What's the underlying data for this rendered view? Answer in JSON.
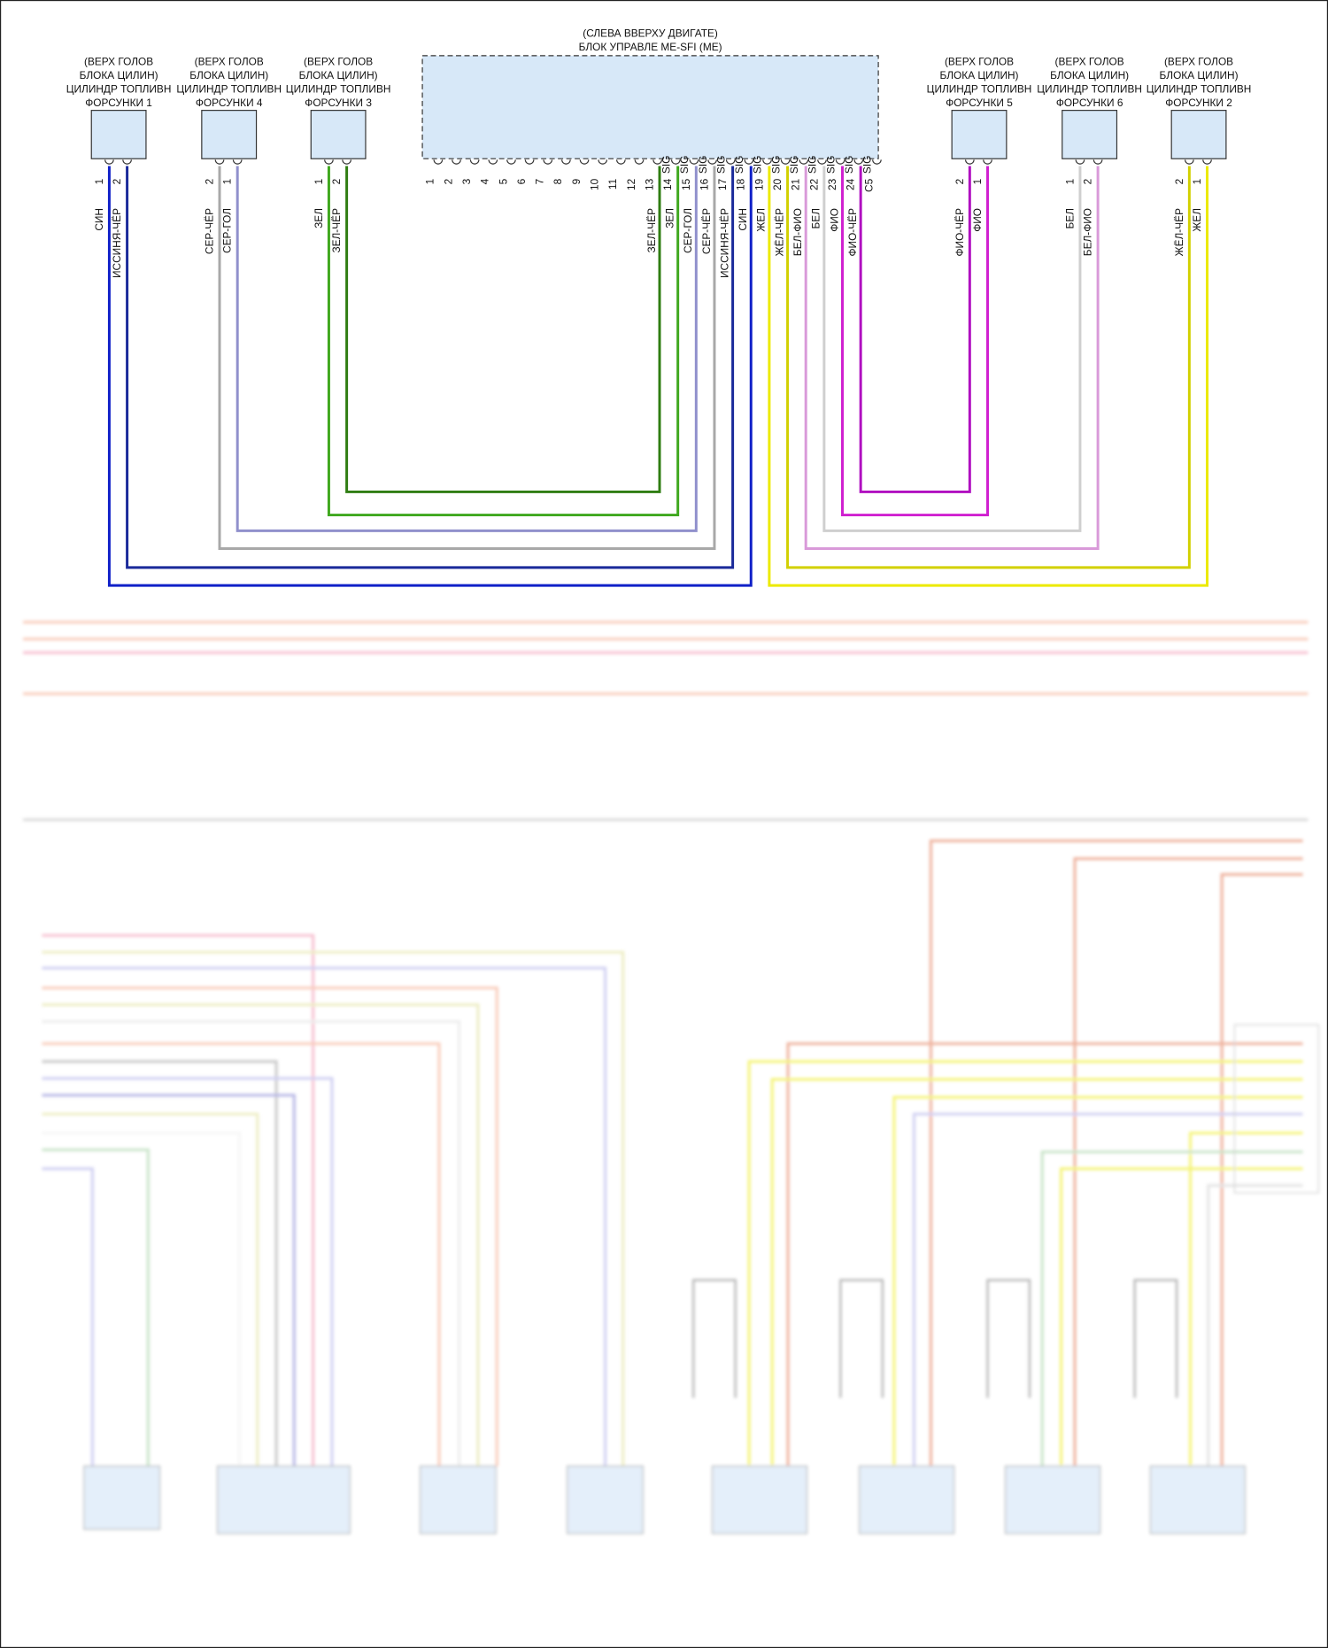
{
  "ecu": {
    "location": "(СЛЕВА ВВЕРХУ ДВИГАТЕ)",
    "name": "БЛОК УПРАВЛЕ ME-SFI (ME)",
    "pins": [
      "1",
      "2",
      "3",
      "4",
      "5",
      "6",
      "7",
      "8",
      "9",
      "10",
      "11",
      "12",
      "13",
      "14",
      "15",
      "16",
      "17",
      "18",
      "19",
      "20",
      "21",
      "22",
      "23",
      "24",
      "C5"
    ],
    "signals": [
      "SIG",
      "SIG",
      "SIG",
      "SIG",
      "SIG",
      "SIG",
      "SIG",
      "SIG",
      "SIG",
      "SIG",
      "SIG",
      "SIG"
    ],
    "wires": [
      "ЗЕЛ-ЧЁР",
      "ЗЕЛ",
      "СЕР-ГОЛ",
      "СЕР-ЧЁР",
      "ИССИНЯ-ЧЁР",
      "СИН",
      "ЖЕЛ",
      "ЖЁЛ-ЧЁР",
      "БЕЛ-ФИО",
      "БЕЛ",
      "ФИО",
      "ФИО-ЧЁР"
    ]
  },
  "injectors": [
    {
      "lines": [
        "(ВЕРХ ГОЛОВ",
        "БЛОКА ЦИЛИН)",
        "ЦИЛИНДР ТОПЛИВН",
        "ФОРСУНКИ 1"
      ],
      "pins": [
        "1",
        "2"
      ],
      "wires": [
        "СИН",
        "ИССИНЯ-ЧЁР"
      ]
    },
    {
      "lines": [
        "(ВЕРХ ГОЛОВ",
        "БЛОКА ЦИЛИН)",
        "ЦИЛИНДР ТОПЛИВН",
        "ФОРСУНКИ 4"
      ],
      "pins": [
        "2",
        "1"
      ],
      "wires": [
        "СЕР-ЧЁР",
        "СЕР-ГОЛ"
      ]
    },
    {
      "lines": [
        "(ВЕРХ ГОЛОВ",
        "БЛОКА ЦИЛИН)",
        "ЦИЛИНДР ТОПЛИВН",
        "ФОРСУНКИ 3"
      ],
      "pins": [
        "1",
        "2"
      ],
      "wires": [
        "ЗЕЛ",
        "ЗЕЛ-ЧЁР"
      ]
    },
    {
      "lines": [
        "(ВЕРХ ГОЛОВ",
        "БЛОКА ЦИЛИН)",
        "ЦИЛИНДР ТОПЛИВН",
        "ФОРСУНКИ 5"
      ],
      "pins": [
        "2",
        "1"
      ],
      "wires": [
        "ФИО-ЧЁР",
        "ФИО"
      ]
    },
    {
      "lines": [
        "(ВЕРХ ГОЛОВ",
        "БЛОКА ЦИЛИН)",
        "ЦИЛИНДР ТОПЛИВН",
        "ФОРСУНКИ 6"
      ],
      "pins": [
        "1",
        "2"
      ],
      "wires": [
        "БЕЛ",
        "БЕЛ-ФИО"
      ]
    },
    {
      "lines": [
        "(ВЕРХ ГОЛОВ",
        "БЛОКА ЦИЛИН)",
        "ЦИЛИНДР ТОПЛИВН",
        "ФОРСУНКИ 2"
      ],
      "pins": [
        "2",
        "1"
      ],
      "wires": [
        "ЖЁЛ-ЧЁР",
        "ЖЕЛ"
      ]
    }
  ]
}
